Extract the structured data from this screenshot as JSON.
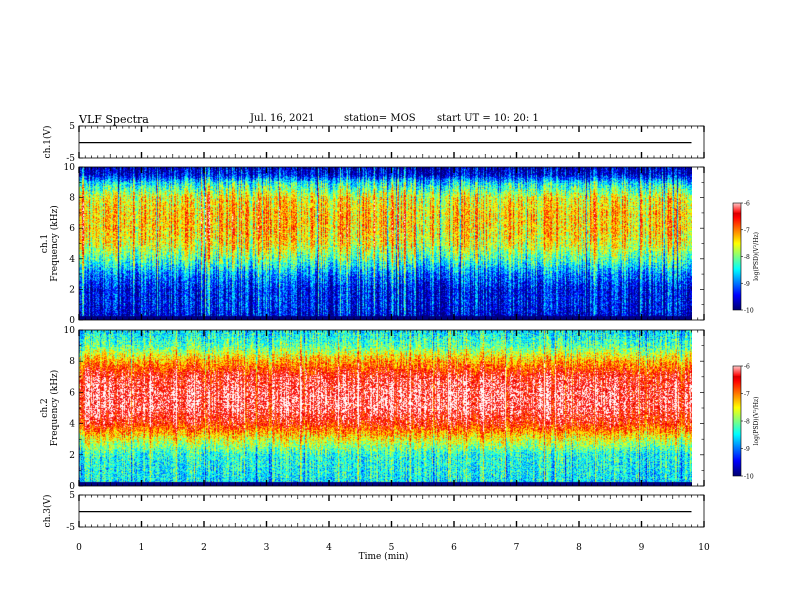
{
  "header": {
    "title": "VLF Spectra",
    "date": "Jul. 16, 2021",
    "station": "station= MOS",
    "start_ut": "start UT =  10: 20: 1"
  },
  "chart_data": [
    {
      "type": "line",
      "name": "ch1-voltage",
      "ylabel": "ch.1(V)",
      "xlim": [
        0,
        10
      ],
      "ylim": [
        -5,
        5
      ],
      "yticks": [
        "5",
        "-5"
      ],
      "series": [
        {
          "x": [
            0,
            9.8
          ],
          "y": [
            -0.2,
            -0.2
          ]
        }
      ]
    },
    {
      "type": "heatmap",
      "name": "ch1-spectrogram",
      "ylabel": "ch.1\nFrequency (kHz)",
      "xlim": [
        0,
        10
      ],
      "data_xmax": 9.8,
      "ylim": [
        0,
        10
      ],
      "yticks": [
        "0",
        "2",
        "4",
        "6",
        "8",
        "10"
      ],
      "colorbar": {
        "label": "log(PSD)(V²/Hz)",
        "range": [
          -10,
          -6
        ],
        "ticks": [
          "-6",
          "-7",
          "-8",
          "-9",
          "-10"
        ]
      },
      "profile_khz": [
        0,
        0.5,
        1,
        2,
        3,
        4,
        5,
        6,
        7,
        8,
        9,
        9.5,
        10
      ],
      "profile_log_psd": [
        -9.8,
        -9.6,
        -9.5,
        -9.5,
        -9.0,
        -8.2,
        -7.6,
        -7.4,
        -7.4,
        -7.6,
        -8.6,
        -9.6,
        -9.8
      ]
    },
    {
      "type": "heatmap",
      "name": "ch2-spectrogram",
      "ylabel": "ch.2\nFrequency (kHz)",
      "xlim": [
        0,
        10
      ],
      "data_xmax": 9.8,
      "ylim": [
        0,
        10
      ],
      "yticks": [
        "0",
        "2",
        "4",
        "6",
        "8",
        "10"
      ],
      "colorbar": {
        "label": "log(PSD)(V²/Hz)",
        "range": [
          -10,
          -6
        ],
        "ticks": [
          "-6",
          "-7",
          "-8",
          "-9",
          "-10"
        ]
      },
      "profile_khz": [
        0,
        1,
        2,
        3,
        4,
        5,
        6,
        7,
        8,
        9,
        10
      ],
      "profile_log_psd": [
        -8.6,
        -8.5,
        -8.4,
        -7.6,
        -6.6,
        -6.2,
        -6.2,
        -6.4,
        -7.2,
        -8.2,
        -8.6
      ]
    },
    {
      "type": "line",
      "name": "ch3-voltage",
      "ylabel": "ch.3(V)",
      "xlim": [
        0,
        10
      ],
      "ylim": [
        -5,
        5
      ],
      "yticks": [
        "5",
        "-5"
      ],
      "series": [
        {
          "x": [
            0,
            9.8
          ],
          "y": [
            -0.2,
            -0.2
          ]
        }
      ]
    }
  ],
  "xaxis": {
    "label": "Time (min)",
    "ticks": [
      "0",
      "1",
      "2",
      "3",
      "4",
      "5",
      "6",
      "7",
      "8",
      "9",
      "10"
    ]
  }
}
